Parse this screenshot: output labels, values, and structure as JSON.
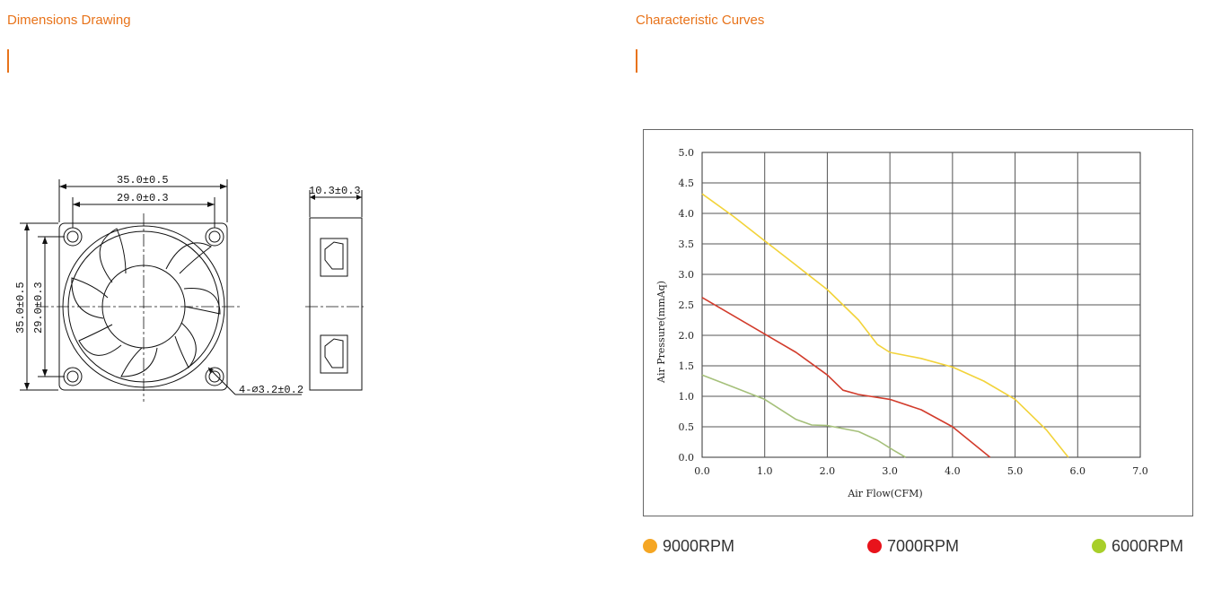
{
  "left_section": {
    "title": "Dimensions Drawing",
    "dimensions": {
      "outer_width": "35.0±0.5",
      "hole_spacing_width": "29.0±0.3",
      "depth": "10.3±0.3",
      "outer_height": "35.0±0.5",
      "hole_spacing_height": "29.0±0.3",
      "mounting_holes": "4-⌀3.2±0.2"
    }
  },
  "right_section": {
    "title": "Characteristic Curves"
  },
  "colors": {
    "accent": "#e8731a",
    "grid": "#555555"
  },
  "chart_data": {
    "type": "line",
    "title": "",
    "xlabel": "Air Flow(CFM)",
    "ylabel": "Air Pressure(mmAq)",
    "xlim": [
      0,
      7
    ],
    "ylim": [
      0,
      5
    ],
    "x_ticks": [
      "0.0",
      "1.0",
      "2.0",
      "3.0",
      "4.0",
      "5.0",
      "6.0",
      "7.0"
    ],
    "y_ticks": [
      "0.0",
      "0.5",
      "1.0",
      "1.5",
      "2.0",
      "2.5",
      "3.0",
      "3.5",
      "4.0",
      "4.5",
      "5.0"
    ],
    "grid": true,
    "legend_position": "bottom",
    "series": [
      {
        "name": "9000RPM",
        "color": "#f2d33a",
        "legend_color": "#f5a623",
        "points": [
          [
            0,
            4.32
          ],
          [
            0.5,
            3.95
          ],
          [
            1.0,
            3.55
          ],
          [
            1.5,
            3.15
          ],
          [
            2.0,
            2.75
          ],
          [
            2.5,
            2.25
          ],
          [
            2.8,
            1.85
          ],
          [
            3.0,
            1.72
          ],
          [
            3.5,
            1.62
          ],
          [
            4.0,
            1.48
          ],
          [
            4.5,
            1.25
          ],
          [
            5.0,
            0.95
          ],
          [
            5.5,
            0.45
          ],
          [
            5.85,
            0.0
          ]
        ]
      },
      {
        "name": "7000RPM",
        "color": "#d23c2c",
        "legend_color": "#e8131b",
        "points": [
          [
            0,
            2.62
          ],
          [
            0.5,
            2.32
          ],
          [
            1.0,
            2.02
          ],
          [
            1.5,
            1.72
          ],
          [
            2.0,
            1.35
          ],
          [
            2.25,
            1.1
          ],
          [
            2.5,
            1.03
          ],
          [
            3.0,
            0.95
          ],
          [
            3.5,
            0.78
          ],
          [
            4.0,
            0.5
          ],
          [
            4.3,
            0.25
          ],
          [
            4.6,
            0.0
          ]
        ]
      },
      {
        "name": "6000RPM",
        "color": "#a5c07a",
        "legend_color": "#a8cf2a",
        "points": [
          [
            0,
            1.35
          ],
          [
            0.5,
            1.15
          ],
          [
            1.0,
            0.95
          ],
          [
            1.5,
            0.62
          ],
          [
            1.75,
            0.53
          ],
          [
            2.0,
            0.52
          ],
          [
            2.5,
            0.42
          ],
          [
            2.8,
            0.28
          ],
          [
            3.05,
            0.12
          ],
          [
            3.25,
            0.0
          ]
        ]
      }
    ]
  }
}
